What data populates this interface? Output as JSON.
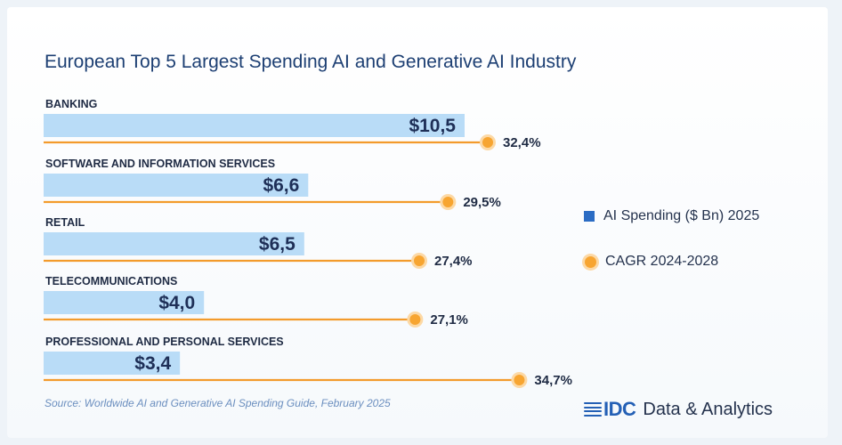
{
  "title": "European Top 5 Largest Spending AI and Generative AI Industry",
  "legend": {
    "spending": "AI Spending ($ Bn) 2025",
    "cagr": "CAGR 2024-2028"
  },
  "source": "Source: Worldwide AI and Generative AI Spending Guide, February 2025",
  "brand": {
    "logo": "IDC",
    "text": "Data & Analytics"
  },
  "colors": {
    "bar": "#b9dcf7",
    "line": "#f39b2c",
    "dot": "#f7a531",
    "dot_halo": "#fcd9a6",
    "legend_square": "#2b6cc4"
  },
  "chart_data": {
    "type": "bar",
    "orientation": "horizontal",
    "categories": [
      "BANKING",
      "SOFTWARE AND INFORMATION SERVICES",
      "RETAIL",
      "TELECOMMUNICATIONS",
      "PROFESSIONAL AND PERSONAL SERVICES"
    ],
    "series": [
      {
        "name": "AI Spending ($ Bn) 2025",
        "values": [
          10.5,
          6.6,
          6.5,
          4.0,
          3.4
        ],
        "labels": [
          "$10,5",
          "$6,6",
          "$6,5",
          "$4,0",
          "$3,4"
        ]
      },
      {
        "name": "CAGR 2024-2028",
        "values": [
          32.4,
          29.5,
          27.4,
          27.1,
          34.7
        ],
        "labels": [
          "32,4%",
          "29,5%",
          "27,4%",
          "27,1%",
          "34,7%"
        ]
      }
    ]
  }
}
